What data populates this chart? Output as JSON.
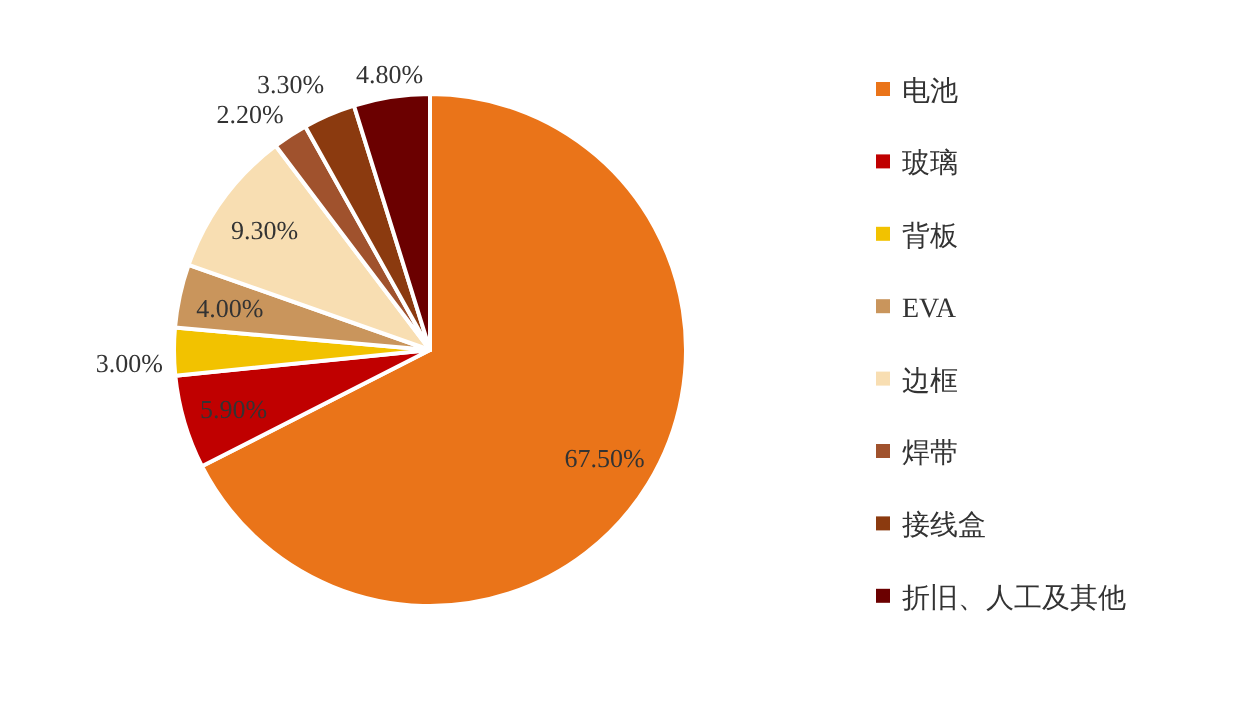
{
  "chart_data": {
    "type": "pie",
    "categories": [
      "电池",
      "玻璃",
      "背板",
      "EVA",
      "边框",
      "焊带",
      "接线盒",
      "折旧、人工及其他"
    ],
    "values": [
      67.5,
      5.9,
      3.0,
      4.0,
      9.3,
      2.2,
      3.3,
      4.8
    ],
    "value_labels": [
      "67.50%",
      "5.90%",
      "3.00%",
      "4.00%",
      "9.30%",
      "2.20%",
      "3.30%",
      "4.80%"
    ],
    "colors": [
      "#ea7419",
      "#c00000",
      "#f2c200",
      "#c9955c",
      "#f8deb2",
      "#a0522d",
      "#8b3a0f",
      "#6b0000"
    ],
    "legend": "right"
  }
}
